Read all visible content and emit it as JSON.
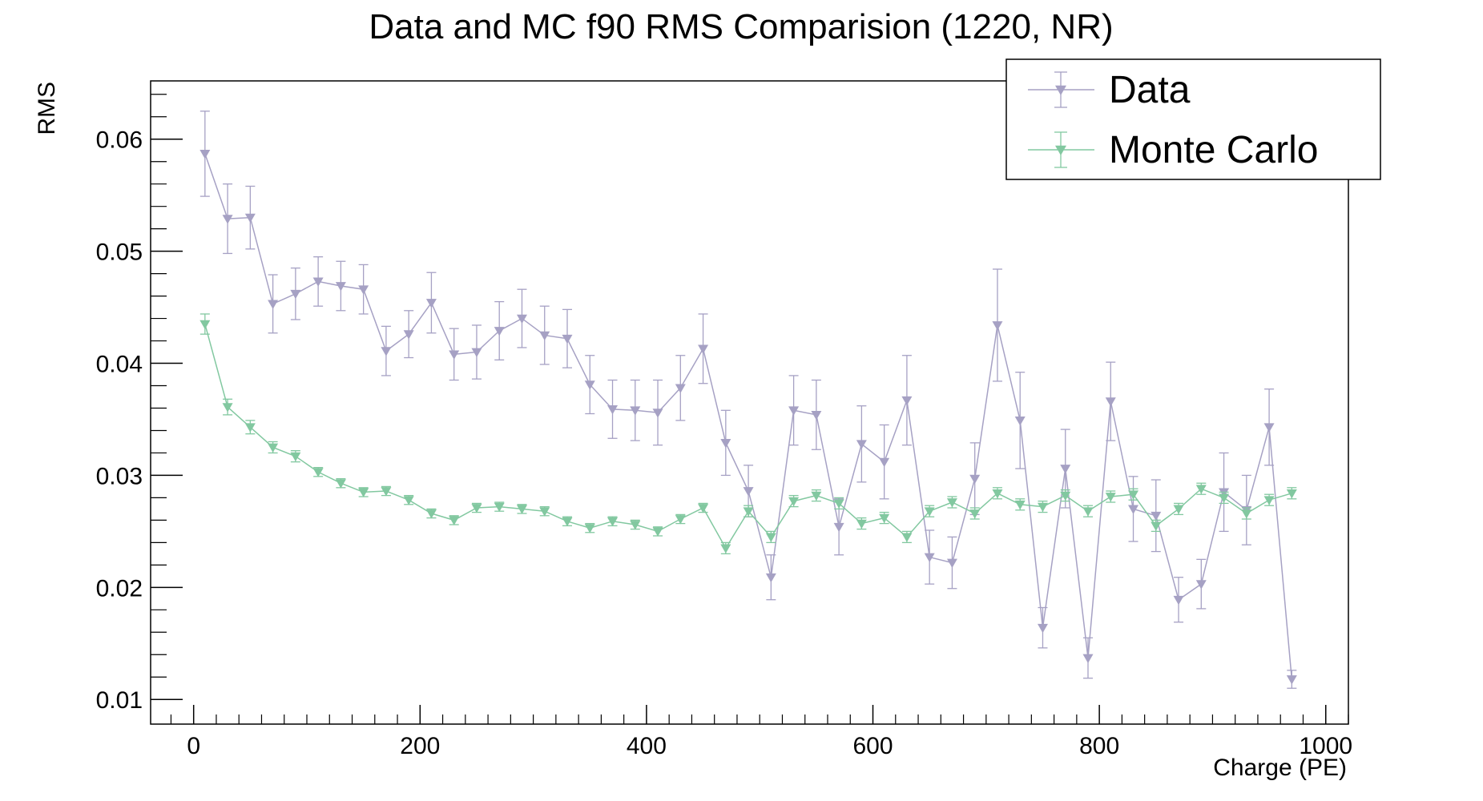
{
  "chart_data": {
    "type": "scatter",
    "title": "Data and MC f90 RMS Comparision (1220, NR)",
    "xlabel": "Charge (PE)",
    "ylabel": "RMS",
    "xlim": [
      -38,
      1020
    ],
    "ylim": [
      0.0078,
      0.0652
    ],
    "x_ticks": [
      0,
      200,
      400,
      600,
      800,
      1000
    ],
    "x_tick_labels": [
      "0",
      "200",
      "400",
      "600",
      "800",
      "1000"
    ],
    "y_ticks": [
      0.01,
      0.02,
      0.03,
      0.04,
      0.05,
      0.06
    ],
    "y_tick_labels": [
      "0.01",
      "0.02",
      "0.03",
      "0.04",
      "0.05",
      "0.06"
    ],
    "grid": false,
    "legend_position": "top-right",
    "x": [
      10,
      30,
      50,
      70,
      90,
      110,
      130,
      150,
      170,
      190,
      210,
      230,
      250,
      270,
      290,
      310,
      330,
      350,
      370,
      390,
      410,
      430,
      450,
      470,
      490,
      510,
      530,
      550,
      570,
      590,
      610,
      630,
      650,
      670,
      690,
      710,
      730,
      750,
      770,
      790,
      810,
      830,
      850,
      870,
      890,
      910,
      930,
      950,
      970
    ],
    "series": [
      {
        "name": "Data",
        "color": "#a6a1c4",
        "values": [
          0.0587,
          0.0529,
          0.053,
          0.0453,
          0.0462,
          0.0473,
          0.0469,
          0.0466,
          0.0411,
          0.0426,
          0.0454,
          0.0408,
          0.041,
          0.0429,
          0.044,
          0.0425,
          0.0422,
          0.0381,
          0.0359,
          0.0358,
          0.0356,
          0.0378,
          0.0413,
          0.0329,
          0.0286,
          0.0209,
          0.0358,
          0.0354,
          0.0254,
          0.0328,
          0.0312,
          0.0367,
          0.0227,
          0.0222,
          0.0297,
          0.0434,
          0.0349,
          0.0164,
          0.0306,
          0.0137,
          0.0366,
          0.027,
          0.0264,
          0.0189,
          0.0203,
          0.0285,
          0.0269,
          0.0343,
          0.0118
        ],
        "errors": [
          0.0038,
          0.0031,
          0.0028,
          0.0026,
          0.0023,
          0.0022,
          0.0022,
          0.0022,
          0.0022,
          0.0021,
          0.0027,
          0.0023,
          0.0024,
          0.0026,
          0.0026,
          0.0026,
          0.0026,
          0.0026,
          0.0026,
          0.0027,
          0.0029,
          0.0029,
          0.0031,
          0.0029,
          0.0023,
          0.002,
          0.0031,
          0.0031,
          0.0025,
          0.0034,
          0.0033,
          0.004,
          0.0024,
          0.0023,
          0.0032,
          0.005,
          0.0043,
          0.0018,
          0.0035,
          0.0018,
          0.0035,
          0.0029,
          0.0032,
          0.002,
          0.0022,
          0.0035,
          0.0031,
          0.0034,
          0.0008
        ]
      },
      {
        "name": "Monte Carlo",
        "color": "#82c8a0",
        "values": [
          0.0435,
          0.0361,
          0.0343,
          0.0325,
          0.0317,
          0.0303,
          0.0293,
          0.0285,
          0.0286,
          0.0278,
          0.0266,
          0.026,
          0.0271,
          0.0272,
          0.027,
          0.0268,
          0.0259,
          0.0253,
          0.0259,
          0.0256,
          0.025,
          0.0261,
          0.0271,
          0.0235,
          0.0268,
          0.0245,
          0.0277,
          0.0282,
          0.0275,
          0.0257,
          0.0262,
          0.0245,
          0.0268,
          0.0276,
          0.0266,
          0.0284,
          0.0274,
          0.0272,
          0.0282,
          0.0268,
          0.0281,
          0.0283,
          0.0255,
          0.027,
          0.0288,
          0.028,
          0.0266,
          0.0278,
          0.0284
        ],
        "errors": [
          0.0009,
          0.0007,
          0.0006,
          0.0005,
          0.0005,
          0.0004,
          0.0004,
          0.0004,
          0.0004,
          0.0004,
          0.0004,
          0.0004,
          0.0004,
          0.0004,
          0.0004,
          0.0004,
          0.0004,
          0.0004,
          0.0004,
          0.0004,
          0.0004,
          0.0004,
          0.0004,
          0.0005,
          0.0005,
          0.0005,
          0.0005,
          0.0005,
          0.0005,
          0.0005,
          0.0005,
          0.0005,
          0.0005,
          0.0005,
          0.0005,
          0.0005,
          0.0005,
          0.0005,
          0.0005,
          0.0005,
          0.0005,
          0.0005,
          0.0005,
          0.0005,
          0.0005,
          0.0005,
          0.0005,
          0.0005,
          0.0005
        ]
      }
    ]
  }
}
